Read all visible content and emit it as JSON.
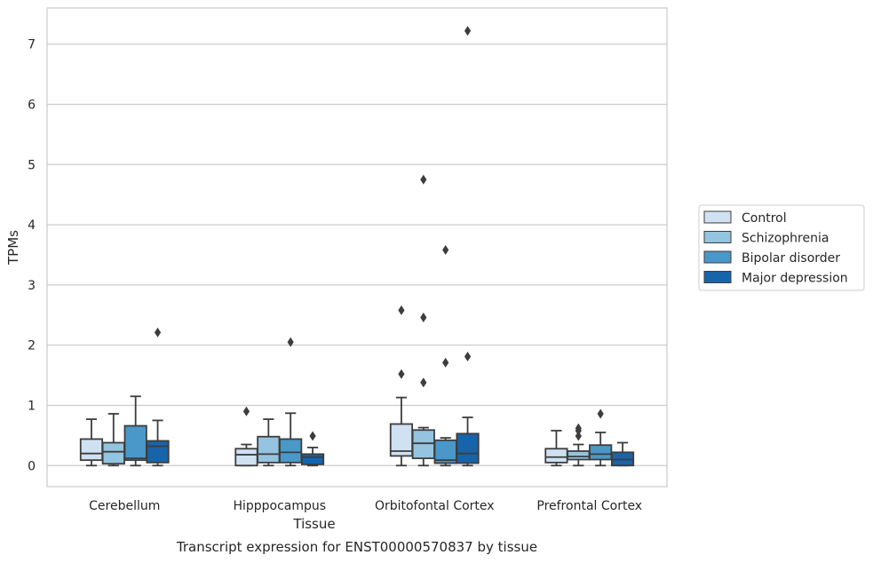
{
  "chart_data": {
    "type": "box",
    "title": "",
    "caption": "Transcript expression for ENST00000570837 by tissue",
    "xlabel": "Tissue",
    "ylabel": "TPMs",
    "ylim": [
      -0.35,
      7.6
    ],
    "yticks": [
      0,
      1,
      2,
      3,
      4,
      5,
      6,
      7
    ],
    "grid": "horizontal",
    "legend_position": "right",
    "categories": [
      "Cerebellum",
      "Hipppocampus",
      "Orbitofontal Cortex",
      "Prefrontal Cortex"
    ],
    "series": [
      {
        "name": "Control",
        "color": "#d0e1f2",
        "boxes": [
          {
            "whislo": 0.0,
            "q1": 0.09,
            "med": 0.2,
            "q3": 0.44,
            "whishi": 0.77,
            "fliers": []
          },
          {
            "whislo": 0.0,
            "q1": 0.0,
            "med": 0.18,
            "q3": 0.28,
            "whishi": 0.35,
            "fliers": [
              0.9
            ]
          },
          {
            "whislo": 0.0,
            "q1": 0.16,
            "med": 0.24,
            "q3": 0.69,
            "whishi": 1.13,
            "fliers": [
              1.52,
              2.58
            ]
          },
          {
            "whislo": 0.0,
            "q1": 0.05,
            "med": 0.14,
            "q3": 0.28,
            "whishi": 0.58,
            "fliers": []
          }
        ]
      },
      {
        "name": "Schizophrenia",
        "color": "#94c4df",
        "boxes": [
          {
            "whislo": 0.0,
            "q1": 0.03,
            "med": 0.23,
            "q3": 0.38,
            "whishi": 0.86,
            "fliers": []
          },
          {
            "whislo": 0.0,
            "q1": 0.05,
            "med": 0.19,
            "q3": 0.48,
            "whishi": 0.77,
            "fliers": []
          },
          {
            "whislo": 0.0,
            "q1": 0.12,
            "med": 0.37,
            "q3": 0.59,
            "whishi": 0.63,
            "fliers": [
              1.38,
              2.46,
              4.75
            ]
          },
          {
            "whislo": 0.0,
            "q1": 0.1,
            "med": 0.15,
            "q3": 0.24,
            "whishi": 0.35,
            "fliers": [
              0.49,
              0.58,
              0.62
            ]
          }
        ]
      },
      {
        "name": "Bipolar disorder",
        "color": "#4a98c9",
        "boxes": [
          {
            "whislo": 0.0,
            "q1": 0.09,
            "med": 0.12,
            "q3": 0.66,
            "whishi": 1.15,
            "fliers": []
          },
          {
            "whislo": 0.0,
            "q1": 0.05,
            "med": 0.22,
            "q3": 0.44,
            "whishi": 0.87,
            "fliers": [
              2.05
            ]
          },
          {
            "whislo": 0.0,
            "q1": 0.04,
            "med": 0.09,
            "q3": 0.42,
            "whishi": 0.46,
            "fliers": [
              1.71,
              3.58
            ]
          },
          {
            "whislo": 0.0,
            "q1": 0.1,
            "med": 0.19,
            "q3": 0.34,
            "whishi": 0.55,
            "fliers": [
              0.86
            ]
          }
        ]
      },
      {
        "name": "Major depression",
        "color": "#1764ab",
        "boxes": [
          {
            "whislo": 0.0,
            "q1": 0.05,
            "med": 0.32,
            "q3": 0.41,
            "whishi": 0.75,
            "fliers": [
              2.21
            ]
          },
          {
            "whislo": 0.0,
            "q1": 0.02,
            "med": 0.14,
            "q3": 0.19,
            "whishi": 0.3,
            "fliers": [
              0.49
            ]
          },
          {
            "whislo": 0.0,
            "q1": 0.04,
            "med": 0.2,
            "q3": 0.53,
            "whishi": 0.8,
            "fliers": [
              1.81,
              7.22
            ]
          },
          {
            "whislo": 0.0,
            "q1": 0.0,
            "med": 0.1,
            "q3": 0.22,
            "whishi": 0.38,
            "fliers": []
          }
        ]
      }
    ]
  }
}
